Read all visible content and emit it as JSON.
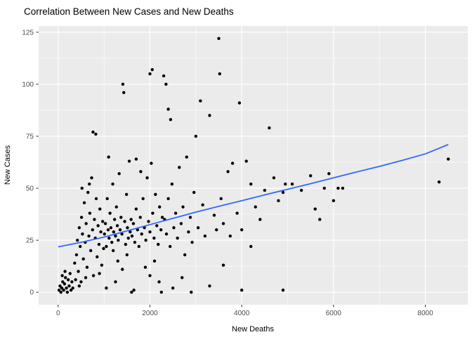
{
  "chart_data": {
    "type": "scatter",
    "title": "Correlation Between New Cases and New Deaths",
    "xlabel": "New Deaths",
    "ylabel": "New Cases",
    "xlim": [
      -425,
      8925
    ],
    "ylim": [
      -6,
      128
    ],
    "x_ticks": [
      0,
      2000,
      4000,
      6000,
      8000
    ],
    "x_minor": [
      1000,
      3000,
      5000,
      7000
    ],
    "y_ticks": [
      0,
      25,
      50,
      75,
      100,
      125
    ],
    "y_minor": [
      12.5,
      37.5,
      62.5,
      87.5,
      112.5
    ],
    "grid": true,
    "legend": "none",
    "colors": {
      "panel_bg": "#EBEBEB",
      "grid": "#FFFFFF",
      "points": "#000000",
      "trend_line": "#3366FF",
      "tick_mark": "#333333",
      "tick_label": "#4D4D4D"
    },
    "points": [
      [
        20,
        1
      ],
      [
        40,
        3
      ],
      [
        60,
        0
      ],
      [
        80,
        2
      ],
      [
        100,
        5
      ],
      [
        120,
        1
      ],
      [
        140,
        4
      ],
      [
        160,
        7
      ],
      [
        180,
        2
      ],
      [
        200,
        0
      ],
      [
        220,
        6
      ],
      [
        240,
        3
      ],
      [
        260,
        9
      ],
      [
        280,
        1
      ],
      [
        300,
        5
      ],
      [
        320,
        2
      ],
      [
        150,
        10
      ],
      [
        90,
        8
      ],
      [
        360,
        14
      ],
      [
        380,
        6
      ],
      [
        400,
        18
      ],
      [
        420,
        25
      ],
      [
        440,
        10
      ],
      [
        460,
        31
      ],
      [
        480,
        22
      ],
      [
        500,
        5
      ],
      [
        510,
        36
      ],
      [
        530,
        28
      ],
      [
        550,
        16
      ],
      [
        570,
        43
      ],
      [
        590,
        24
      ],
      [
        610,
        33
      ],
      [
        630,
        12
      ],
      [
        650,
        48
      ],
      [
        670,
        27
      ],
      [
        690,
        38
      ],
      [
        710,
        20
      ],
      [
        730,
        55
      ],
      [
        750,
        30
      ],
      [
        770,
        8
      ],
      [
        790,
        35
      ],
      [
        810,
        26
      ],
      [
        830,
        45
      ],
      [
        850,
        17
      ],
      [
        870,
        32
      ],
      [
        890,
        23
      ],
      [
        910,
        40
      ],
      [
        930,
        29
      ],
      [
        950,
        13
      ],
      [
        970,
        34
      ],
      [
        990,
        21
      ],
      [
        520,
        50
      ],
      [
        680,
        52
      ],
      [
        760,
        77
      ],
      [
        820,
        76
      ],
      [
        460,
        3
      ],
      [
        600,
        7
      ],
      [
        900,
        9
      ],
      [
        1010,
        28
      ],
      [
        1030,
        33
      ],
      [
        1050,
        22
      ],
      [
        1070,
        45
      ],
      [
        1090,
        30
      ],
      [
        1110,
        26
      ],
      [
        1130,
        38
      ],
      [
        1150,
        31
      ],
      [
        1170,
        24
      ],
      [
        1190,
        52
      ],
      [
        1210,
        29
      ],
      [
        1230,
        35
      ],
      [
        1250,
        27
      ],
      [
        1270,
        41
      ],
      [
        1290,
        32
      ],
      [
        1310,
        25
      ],
      [
        1330,
        57
      ],
      [
        1350,
        30
      ],
      [
        1370,
        36
      ],
      [
        1390,
        28
      ],
      [
        1410,
        100
      ],
      [
        1430,
        96
      ],
      [
        1450,
        34
      ],
      [
        1470,
        23
      ],
      [
        1490,
        47
      ],
      [
        1510,
        31
      ],
      [
        1530,
        26
      ],
      [
        1550,
        63
      ],
      [
        1570,
        29
      ],
      [
        1590,
        35
      ],
      [
        1100,
        65
      ],
      [
        1200,
        20
      ],
      [
        1300,
        15
      ],
      [
        1400,
        11
      ],
      [
        1500,
        18
      ],
      [
        1050,
        2
      ],
      [
        1250,
        5
      ],
      [
        1600,
        0
      ],
      [
        1650,
        1
      ],
      [
        1610,
        27
      ],
      [
        1640,
        33
      ],
      [
        1670,
        24
      ],
      [
        1700,
        40
      ],
      [
        1730,
        30
      ],
      [
        1760,
        22
      ],
      [
        1790,
        36
      ],
      [
        1820,
        28
      ],
      [
        1850,
        45
      ],
      [
        1880,
        31
      ],
      [
        1910,
        25
      ],
      [
        1940,
        55
      ],
      [
        1970,
        34
      ],
      [
        2000,
        29
      ],
      [
        2030,
        62
      ],
      [
        2060,
        38
      ],
      [
        2090,
        26
      ],
      [
        2120,
        47
      ],
      [
        2150,
        32
      ],
      [
        2180,
        23
      ],
      [
        2210,
        41
      ],
      [
        2240,
        30
      ],
      [
        2270,
        36
      ],
      [
        1700,
        64
      ],
      [
        1800,
        58
      ],
      [
        1900,
        12
      ],
      [
        2000,
        8
      ],
      [
        2100,
        15
      ],
      [
        2200,
        5
      ],
      [
        2250,
        0
      ],
      [
        2000,
        105
      ],
      [
        2050,
        107
      ],
      [
        2300,
        104
      ],
      [
        2350,
        100
      ],
      [
        2400,
        88
      ],
      [
        2450,
        83
      ],
      [
        2320,
        35
      ],
      [
        2360,
        28
      ],
      [
        2400,
        45
      ],
      [
        2440,
        22
      ],
      [
        2480,
        52
      ],
      [
        2520,
        31
      ],
      [
        2560,
        38
      ],
      [
        2600,
        26
      ],
      [
        2640,
        60
      ],
      [
        2680,
        33
      ],
      [
        2720,
        41
      ],
      [
        2760,
        18
      ],
      [
        2800,
        65
      ],
      [
        2840,
        29
      ],
      [
        2880,
        36
      ],
      [
        2920,
        24
      ],
      [
        2960,
        48
      ],
      [
        3000,
        75
      ],
      [
        3050,
        31
      ],
      [
        3100,
        92
      ],
      [
        3150,
        42
      ],
      [
        3200,
        27
      ],
      [
        3300,
        85
      ],
      [
        3400,
        37
      ],
      [
        3450,
        30
      ],
      [
        2500,
        2
      ],
      [
        2700,
        7
      ],
      [
        2900,
        0
      ],
      [
        3300,
        3
      ],
      [
        3500,
        122
      ],
      [
        3520,
        105
      ],
      [
        3550,
        45
      ],
      [
        3600,
        33
      ],
      [
        3700,
        58
      ],
      [
        3750,
        27
      ],
      [
        3800,
        62
      ],
      [
        3900,
        38
      ],
      [
        3950,
        91
      ],
      [
        4000,
        30
      ],
      [
        4100,
        63
      ],
      [
        4200,
        52
      ],
      [
        4300,
        41
      ],
      [
        4400,
        35
      ],
      [
        4500,
        49
      ],
      [
        4600,
        79
      ],
      [
        4700,
        55
      ],
      [
        4800,
        44
      ],
      [
        4900,
        48
      ],
      [
        4950,
        52
      ],
      [
        4000,
        1
      ],
      [
        4900,
        1
      ],
      [
        3600,
        13
      ],
      [
        4200,
        22
      ],
      [
        5100,
        52
      ],
      [
        5300,
        49
      ],
      [
        5500,
        56
      ],
      [
        5600,
        40
      ],
      [
        5700,
        35
      ],
      [
        5800,
        50
      ],
      [
        5900,
        57
      ],
      [
        6000,
        44
      ],
      [
        6100,
        50
      ],
      [
        6200,
        50
      ],
      [
        8300,
        53
      ],
      [
        8500,
        64
      ]
    ],
    "trend_line": [
      [
        0,
        21.8
      ],
      [
        500,
        24
      ],
      [
        1000,
        26.5
      ],
      [
        1500,
        29.5
      ],
      [
        2000,
        32.5
      ],
      [
        2500,
        35.5
      ],
      [
        3000,
        38.5
      ],
      [
        3500,
        41.3
      ],
      [
        4000,
        44
      ],
      [
        4500,
        46.8
      ],
      [
        5000,
        49.5
      ],
      [
        5500,
        52.2
      ],
      [
        6000,
        55
      ],
      [
        6500,
        57.8
      ],
      [
        7000,
        60.5
      ],
      [
        7500,
        63.4
      ],
      [
        8000,
        66.5
      ],
      [
        8500,
        71
      ]
    ]
  }
}
